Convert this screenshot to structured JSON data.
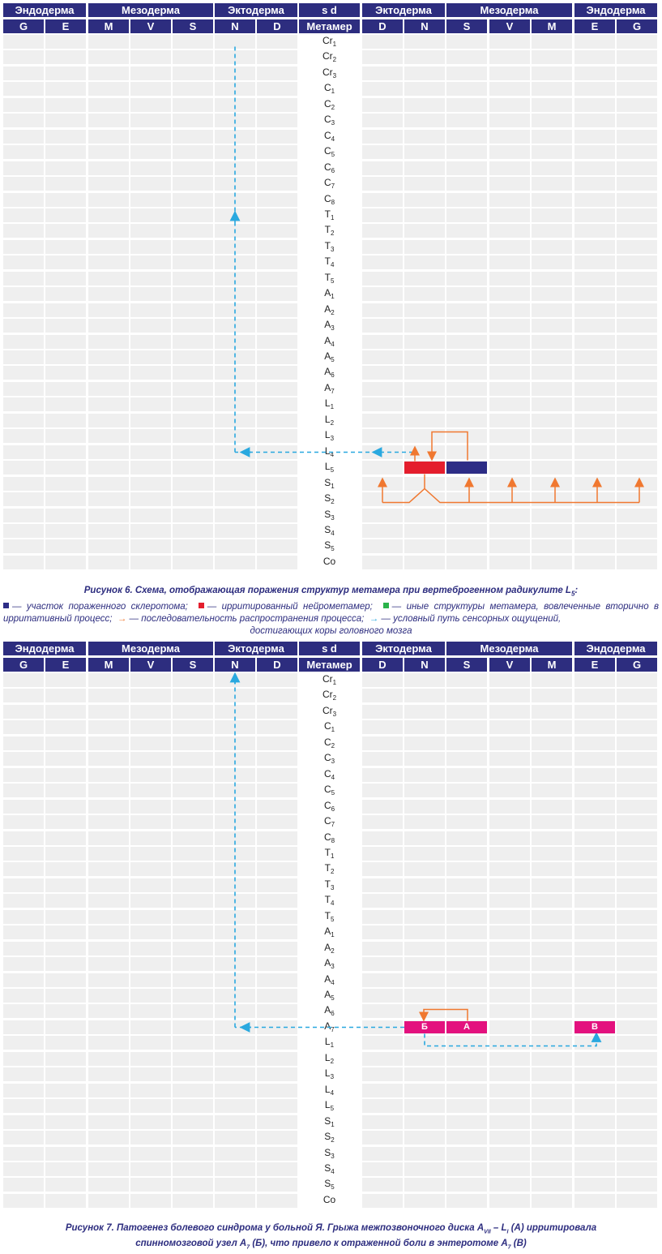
{
  "header_groups": [
    "Эндодерма",
    "Мезодерма",
    "Эктодерма",
    "s     d",
    "Эктодерма",
    "Мезодерма",
    "Эндодерма"
  ],
  "columns": [
    "G",
    "E",
    "M",
    "V",
    "S",
    "N",
    "D",
    "Метамер",
    "D",
    "N",
    "S",
    "V",
    "M",
    "E",
    "G"
  ],
  "metamers": [
    {
      "base": "Cr",
      "sub": "1"
    },
    {
      "base": "Cr",
      "sub": "2"
    },
    {
      "base": "Cr",
      "sub": "3"
    },
    {
      "base": "C",
      "sub": "1"
    },
    {
      "base": "C",
      "sub": "2"
    },
    {
      "base": "C",
      "sub": "3"
    },
    {
      "base": "C",
      "sub": "4"
    },
    {
      "base": "C",
      "sub": "5"
    },
    {
      "base": "C",
      "sub": "6"
    },
    {
      "base": "C",
      "sub": "7"
    },
    {
      "base": "C",
      "sub": "8"
    },
    {
      "base": "T",
      "sub": "1"
    },
    {
      "base": "T",
      "sub": "2"
    },
    {
      "base": "T",
      "sub": "3"
    },
    {
      "base": "T",
      "sub": "4"
    },
    {
      "base": "T",
      "sub": "5"
    },
    {
      "base": "A",
      "sub": "1"
    },
    {
      "base": "A",
      "sub": "2"
    },
    {
      "base": "A",
      "sub": "3"
    },
    {
      "base": "A",
      "sub": "4"
    },
    {
      "base": "A",
      "sub": "5"
    },
    {
      "base": "A",
      "sub": "6"
    },
    {
      "base": "A",
      "sub": "7"
    },
    {
      "base": "L",
      "sub": "1"
    },
    {
      "base": "L",
      "sub": "2"
    },
    {
      "base": "L",
      "sub": "3"
    },
    {
      "base": "L",
      "sub": "4"
    },
    {
      "base": "L",
      "sub": "5"
    },
    {
      "base": "S",
      "sub": "1"
    },
    {
      "base": "S",
      "sub": "2"
    },
    {
      "base": "S",
      "sub": "3"
    },
    {
      "base": "S",
      "sub": "4"
    },
    {
      "base": "S",
      "sub": "5"
    },
    {
      "base": "Co",
      "sub": ""
    }
  ],
  "colors": {
    "header": "#2d2d7f",
    "cell": "#efefef",
    "sclerotome": "#2d2d86",
    "irritated": "#e41e2d",
    "secondary": "#2bb34a",
    "spread_arrow": "#f07830",
    "sensory_path": "#29a8df",
    "herniation": "#e3117e"
  },
  "figure6": {
    "caption_title": "Рисунок 6.  Схема, отображающая поражения структур метамера при вертеброгенном радикулите L",
    "caption_title_sub": "5",
    "caption_title_end": ":",
    "legend_sclerotome": "— участок пораженного склеротома;",
    "legend_irritated": "— ирритированный нейрометамер;",
    "legend_secondary": "— иные структуры метамера, вовлеченные вторично в ирритативный процесс;",
    "legend_spread": "— последовательность распространения процесса;",
    "legend_sensory": "— условный путь сенсорных ощущений,",
    "legend_sensory_end": "достигающих коры головного мозга",
    "arrow_glyph": "→"
  },
  "figure7": {
    "box_b": "Б",
    "box_a": "А",
    "box_v": "В",
    "caption_line1_a": "Рисунок 7.  Патогенез болевого синдрома у больной Я. Грыжа межпозвоночного диска A",
    "caption_line1_sub1": "VII",
    "caption_line1_b": " – L",
    "caption_line1_sub2": "I",
    "caption_line1_c": " (А) ирритировала",
    "caption_line2_a": "спинномозговой узел A",
    "caption_line2_sub1": "7",
    "caption_line2_b": " (Б), что привело к отраженной боли в энтеротоме A",
    "caption_line2_sub2": "7",
    "caption_line2_c": " (В)"
  }
}
